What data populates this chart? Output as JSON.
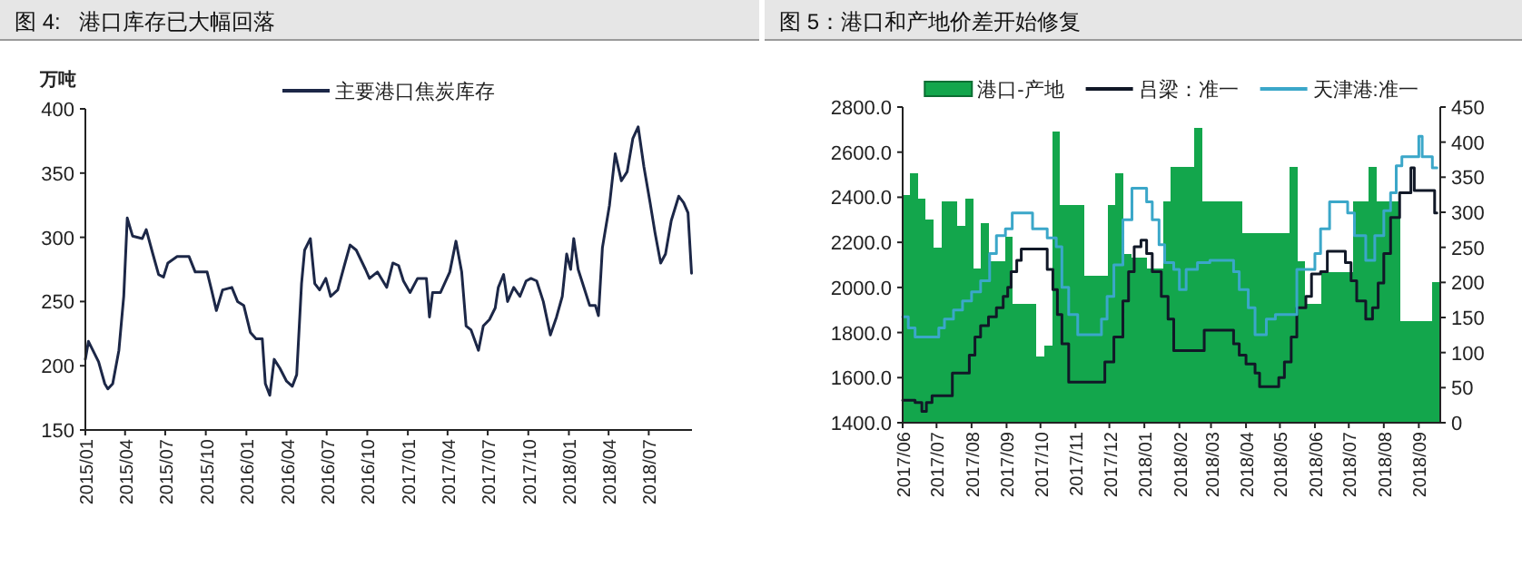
{
  "chart_data": [
    {
      "type": "line",
      "title": "图 4:   港口库存已大幅回落",
      "ylabel": "万吨",
      "legend": "top",
      "xlim": [
        "2015-01-01",
        "2018-10-07"
      ],
      "ylim": [
        150,
        400
      ],
      "yticks": [
        150,
        200,
        250,
        300,
        350,
        400
      ],
      "xticks": [
        {
          "value": "2015-01",
          "label": "2015/01"
        },
        {
          "value": "2015-04",
          "label": "2015/04"
        },
        {
          "value": "2015-07",
          "label": "2015/07"
        },
        {
          "value": "2015-10",
          "label": "2015/10"
        },
        {
          "value": "2016-01",
          "label": "2016/01"
        },
        {
          "value": "2016-04",
          "label": "2016/04"
        },
        {
          "value": "2016-07",
          "label": "2016/07"
        },
        {
          "value": "2016-10",
          "label": "2016/10"
        },
        {
          "value": "2017-01",
          "label": "2017/01"
        },
        {
          "value": "2017-04",
          "label": "2017/04"
        },
        {
          "value": "2017-07",
          "label": "2017/07"
        },
        {
          "value": "2017-10",
          "label": "2017/10"
        },
        {
          "value": "2018-01",
          "label": "2018/01"
        },
        {
          "value": "2018-04",
          "label": "2018/04"
        },
        {
          "value": "2018-07",
          "label": "2018/07"
        }
      ],
      "x": [
        "2015-01-01",
        "2015-01-08",
        "2015-01-31",
        "2015-02-14",
        "2015-02-21",
        "2015-03-04",
        "2015-03-18",
        "2015-03-29",
        "2015-04-06",
        "2015-04-18",
        "2015-05-10",
        "2015-05-19",
        "2015-06-03",
        "2015-06-16",
        "2015-06-27",
        "2015-07-07",
        "2015-07-28",
        "2015-08-24",
        "2015-09-07",
        "2015-10-04",
        "2015-10-14",
        "2015-10-25",
        "2015-11-08",
        "2015-11-29",
        "2015-12-12",
        "2015-12-26",
        "2016-01-10",
        "2016-01-23",
        "2016-02-06",
        "2016-02-13",
        "2016-02-23",
        "2016-03-04",
        "2016-03-17",
        "2016-04-01",
        "2016-04-14",
        "2016-04-24",
        "2016-05-05",
        "2016-05-12",
        "2016-05-25",
        "2016-06-04",
        "2016-06-15",
        "2016-06-29",
        "2016-07-10",
        "2016-07-26",
        "2016-08-10",
        "2016-08-23",
        "2016-09-06",
        "2016-09-27",
        "2016-10-06",
        "2016-10-24",
        "2016-11-14",
        "2016-11-28",
        "2016-12-11",
        "2016-12-22",
        "2017-01-06",
        "2017-01-23",
        "2017-02-12",
        "2017-02-19",
        "2017-02-26",
        "2017-03-16",
        "2017-04-06",
        "2017-04-20",
        "2017-05-03",
        "2017-05-13",
        "2017-05-24",
        "2017-06-10",
        "2017-06-21",
        "2017-07-05",
        "2017-07-18",
        "2017-07-25",
        "2017-08-06",
        "2017-08-15",
        "2017-08-29",
        "2017-09-12",
        "2017-09-26",
        "2017-10-07",
        "2017-10-20",
        "2017-11-04",
        "2017-11-20",
        "2017-12-04",
        "2017-12-17",
        "2017-12-27",
        "2018-01-05",
        "2018-01-12",
        "2018-01-22",
        "2018-02-04",
        "2018-02-17",
        "2018-03-02",
        "2018-03-09",
        "2018-03-18",
        "2018-04-03",
        "2018-04-16",
        "2018-04-30",
        "2018-05-13",
        "2018-05-26",
        "2018-06-07",
        "2018-06-20",
        "2018-07-04",
        "2018-07-15",
        "2018-07-28",
        "2018-08-08",
        "2018-08-21",
        "2018-09-07",
        "2018-09-18",
        "2018-09-28",
        "2018-10-06"
      ],
      "series": [
        {
          "name": "主要港口焦炭库存",
          "color": "#1c2747",
          "values": [
            205,
            219,
            203,
            186,
            182,
            186,
            212,
            254,
            315,
            301,
            299,
            306,
            287,
            271,
            269,
            280,
            285,
            285,
            273,
            273,
            259,
            243,
            259,
            261,
            250,
            247,
            226,
            221,
            221,
            186,
            177,
            205,
            198,
            188,
            184,
            193,
            264,
            290,
            299,
            264,
            259,
            268,
            254,
            259,
            278,
            294,
            290,
            275,
            268,
            273,
            261,
            280,
            278,
            266,
            257,
            268,
            268,
            238,
            257,
            257,
            273,
            297,
            273,
            231,
            228,
            212,
            231,
            236,
            245,
            261,
            271,
            250,
            261,
            254,
            266,
            268,
            266,
            250,
            224,
            238,
            254,
            287,
            275,
            299,
            275,
            261,
            247,
            247,
            239,
            292,
            325,
            365,
            344,
            351,
            377,
            386,
            355,
            327,
            304,
            280,
            287,
            313,
            332,
            327,
            319,
            272
          ]
        }
      ]
    },
    {
      "type": "bar",
      "title": "图 5：港口和产地价差开始修复",
      "legend": "top",
      "xlim": [
        "2017-06-01",
        "2018-09-20"
      ],
      "ylim": [
        1400,
        2800
      ],
      "y2lim": [
        0,
        450
      ],
      "yticks": [
        {
          "value": 1400,
          "label": "1400.0"
        },
        {
          "value": 1600,
          "label": "1600.0"
        },
        {
          "value": 1800,
          "label": "1800.0"
        },
        {
          "value": 2000,
          "label": "2000.0"
        },
        {
          "value": 2200,
          "label": "2200.0"
        },
        {
          "value": 2400,
          "label": "2400.0"
        },
        {
          "value": 2600,
          "label": "2600.0"
        },
        {
          "value": 2800,
          "label": "2800.0"
        }
      ],
      "y2ticks": [
        0,
        50,
        100,
        150,
        200,
        250,
        300,
        350,
        400,
        450
      ],
      "xticks": [
        {
          "value": "2017-06",
          "label": "2017/06"
        },
        {
          "value": "2017-07",
          "label": "2017/07"
        },
        {
          "value": "2017-08",
          "label": "2017/08"
        },
        {
          "value": "2017-09",
          "label": "2017/09"
        },
        {
          "value": "2017-10",
          "label": "2017/10"
        },
        {
          "value": "2017-11",
          "label": "2017/11"
        },
        {
          "value": "2017-12",
          "label": "2017/12"
        },
        {
          "value": "2018-01",
          "label": "2018/01"
        },
        {
          "value": "2018-02",
          "label": "2018/02"
        },
        {
          "value": "2018-03",
          "label": "2018/03"
        },
        {
          "value": "2018-04",
          "label": "2018/04"
        },
        {
          "value": "2018-05",
          "label": "2018/05"
        },
        {
          "value": "2018-06",
          "label": "2018/06"
        },
        {
          "value": "2018-07",
          "label": "2018/07"
        },
        {
          "value": "2018-08",
          "label": "2018/08"
        },
        {
          "value": "2018-09",
          "label": "2018/09"
        }
      ],
      "series": [
        {
          "name": "港口-产地",
          "axis": "y2",
          "color": "#13a64c",
          "x": [
            "2017-06-04",
            "2017-06-11",
            "2017-06-18",
            "2017-06-25",
            "2017-07-02",
            "2017-07-09",
            "2017-07-16",
            "2017-07-23",
            "2017-07-30",
            "2017-08-06",
            "2017-08-13",
            "2017-08-20",
            "2017-08-27",
            "2017-09-03",
            "2017-09-10",
            "2017-09-17",
            "2017-09-24",
            "2017-10-01",
            "2017-10-08",
            "2017-10-15",
            "2017-10-22",
            "2017-10-29",
            "2017-11-05",
            "2017-11-12",
            "2017-11-19",
            "2017-11-26",
            "2017-12-03",
            "2017-12-10",
            "2017-12-17",
            "2017-12-24",
            "2017-12-31",
            "2018-01-07",
            "2018-01-14",
            "2018-01-21",
            "2018-01-28",
            "2018-02-04",
            "2018-02-11",
            "2018-02-18",
            "2018-02-25",
            "2018-03-04",
            "2018-03-11",
            "2018-03-18",
            "2018-03-25",
            "2018-04-01",
            "2018-04-08",
            "2018-04-15",
            "2018-04-22",
            "2018-04-29",
            "2018-05-06",
            "2018-05-13",
            "2018-05-20",
            "2018-05-27",
            "2018-06-03",
            "2018-06-10",
            "2018-06-17",
            "2018-06-24",
            "2018-07-01",
            "2018-07-08",
            "2018-07-15",
            "2018-07-22",
            "2018-07-29",
            "2018-08-05",
            "2018-08-12",
            "2018-08-19",
            "2018-08-26",
            "2018-09-02",
            "2018-09-09",
            "2018-09-16"
          ],
          "values": [
            325,
            355,
            320,
            290,
            250,
            315,
            315,
            280,
            320,
            220,
            285,
            230,
            230,
            265,
            170,
            170,
            170,
            95,
            110,
            415,
            310,
            310,
            310,
            210,
            210,
            210,
            310,
            355,
            240,
            235,
            235,
            220,
            220,
            315,
            365,
            365,
            365,
            420,
            315,
            315,
            315,
            315,
            315,
            270,
            270,
            270,
            270,
            270,
            270,
            365,
            230,
            170,
            170,
            215,
            215,
            215,
            215,
            315,
            315,
            365,
            315,
            315,
            315,
            145,
            145,
            145,
            145,
            200
          ]
        },
        {
          "name": "吕梁：准一",
          "type": "step",
          "color": "#111827",
          "x": [
            "2017-06-01",
            "2017-06-12",
            "2017-06-18",
            "2017-06-22",
            "2017-06-27",
            "2017-07-15",
            "2017-07-30",
            "2017-08-04",
            "2017-08-09",
            "2017-08-16",
            "2017-08-23",
            "2017-08-29",
            "2017-09-02",
            "2017-09-05",
            "2017-09-10",
            "2017-09-14",
            "2017-10-07",
            "2017-10-12",
            "2017-10-16",
            "2017-10-20",
            "2017-10-26",
            "2017-11-27",
            "2017-12-05",
            "2017-12-13",
            "2017-12-18",
            "2017-12-23",
            "2017-12-29",
            "2018-01-03",
            "2018-01-08",
            "2018-01-16",
            "2018-01-22",
            "2018-01-27",
            "2018-02-23",
            "2018-03-21",
            "2018-03-26",
            "2018-04-01",
            "2018-04-09",
            "2018-04-13",
            "2018-04-30",
            "2018-05-05",
            "2018-05-11",
            "2018-05-16",
            "2018-05-24",
            "2018-05-29",
            "2018-06-06",
            "2018-06-12",
            "2018-06-28",
            "2018-07-03",
            "2018-07-08",
            "2018-07-16",
            "2018-07-22",
            "2018-07-27",
            "2018-08-01",
            "2018-08-07",
            "2018-08-15",
            "2018-08-25",
            "2018-08-28",
            "2018-09-15",
            "2018-09-17"
          ],
          "values": [
            1500,
            1490,
            1450,
            1490,
            1520,
            1620,
            1700,
            1780,
            1830,
            1870,
            1910,
            1960,
            2000,
            2070,
            2120,
            2170,
            2080,
            1990,
            1880,
            1750,
            1580,
            1670,
            1780,
            1940,
            2070,
            2180,
            2210,
            2150,
            2070,
            1960,
            1860,
            1720,
            1810,
            1750,
            1700,
            1660,
            1620,
            1560,
            1600,
            1670,
            1780,
            1910,
            1960,
            2060,
            2070,
            2160,
            2110,
            2030,
            1940,
            1860,
            1910,
            2020,
            2150,
            2310,
            2420,
            2530,
            2430,
            2330,
            2330
          ]
        },
        {
          "name": "天津港:准一",
          "type": "step",
          "color": "#3ba7c9",
          "x": [
            "2017-06-01",
            "2017-06-06",
            "2017-06-12",
            "2017-07-03",
            "2017-07-08",
            "2017-07-16",
            "2017-07-24",
            "2017-08-01",
            "2017-08-09",
            "2017-08-17",
            "2017-08-23",
            "2017-08-31",
            "2017-09-06",
            "2017-09-24",
            "2017-10-07",
            "2017-10-15",
            "2017-10-20",
            "2017-10-26",
            "2017-11-03",
            "2017-11-24",
            "2017-11-29",
            "2017-12-05",
            "2017-12-13",
            "2017-12-21",
            "2018-01-03",
            "2018-01-08",
            "2018-01-14",
            "2018-01-19",
            "2018-01-27",
            "2018-02-01",
            "2018-02-07",
            "2018-02-17",
            "2018-02-28",
            "2018-03-21",
            "2018-03-26",
            "2018-04-03",
            "2018-04-09",
            "2018-04-19",
            "2018-04-27",
            "2018-05-16",
            "2018-06-01",
            "2018-06-06",
            "2018-06-14",
            "2018-06-30",
            "2018-07-06",
            "2018-07-16",
            "2018-07-24",
            "2018-08-01",
            "2018-08-07",
            "2018-08-12",
            "2018-08-17",
            "2018-09-01",
            "2018-09-04",
            "2018-09-13",
            "2018-09-17"
          ],
          "values": [
            1870,
            1820,
            1780,
            1820,
            1860,
            1900,
            1940,
            1980,
            2030,
            2150,
            2230,
            2260,
            2330,
            2260,
            2220,
            2180,
            2000,
            1880,
            1790,
            1860,
            1960,
            2100,
            2300,
            2440,
            2380,
            2300,
            2190,
            2110,
            2080,
            1990,
            2080,
            2110,
            2120,
            2070,
            1990,
            1910,
            1790,
            1860,
            1880,
            2080,
            2150,
            2260,
            2380,
            2330,
            2230,
            2120,
            2230,
            2340,
            2420,
            2540,
            2580,
            2670,
            2580,
            2530,
            2530
          ]
        }
      ]
    }
  ]
}
